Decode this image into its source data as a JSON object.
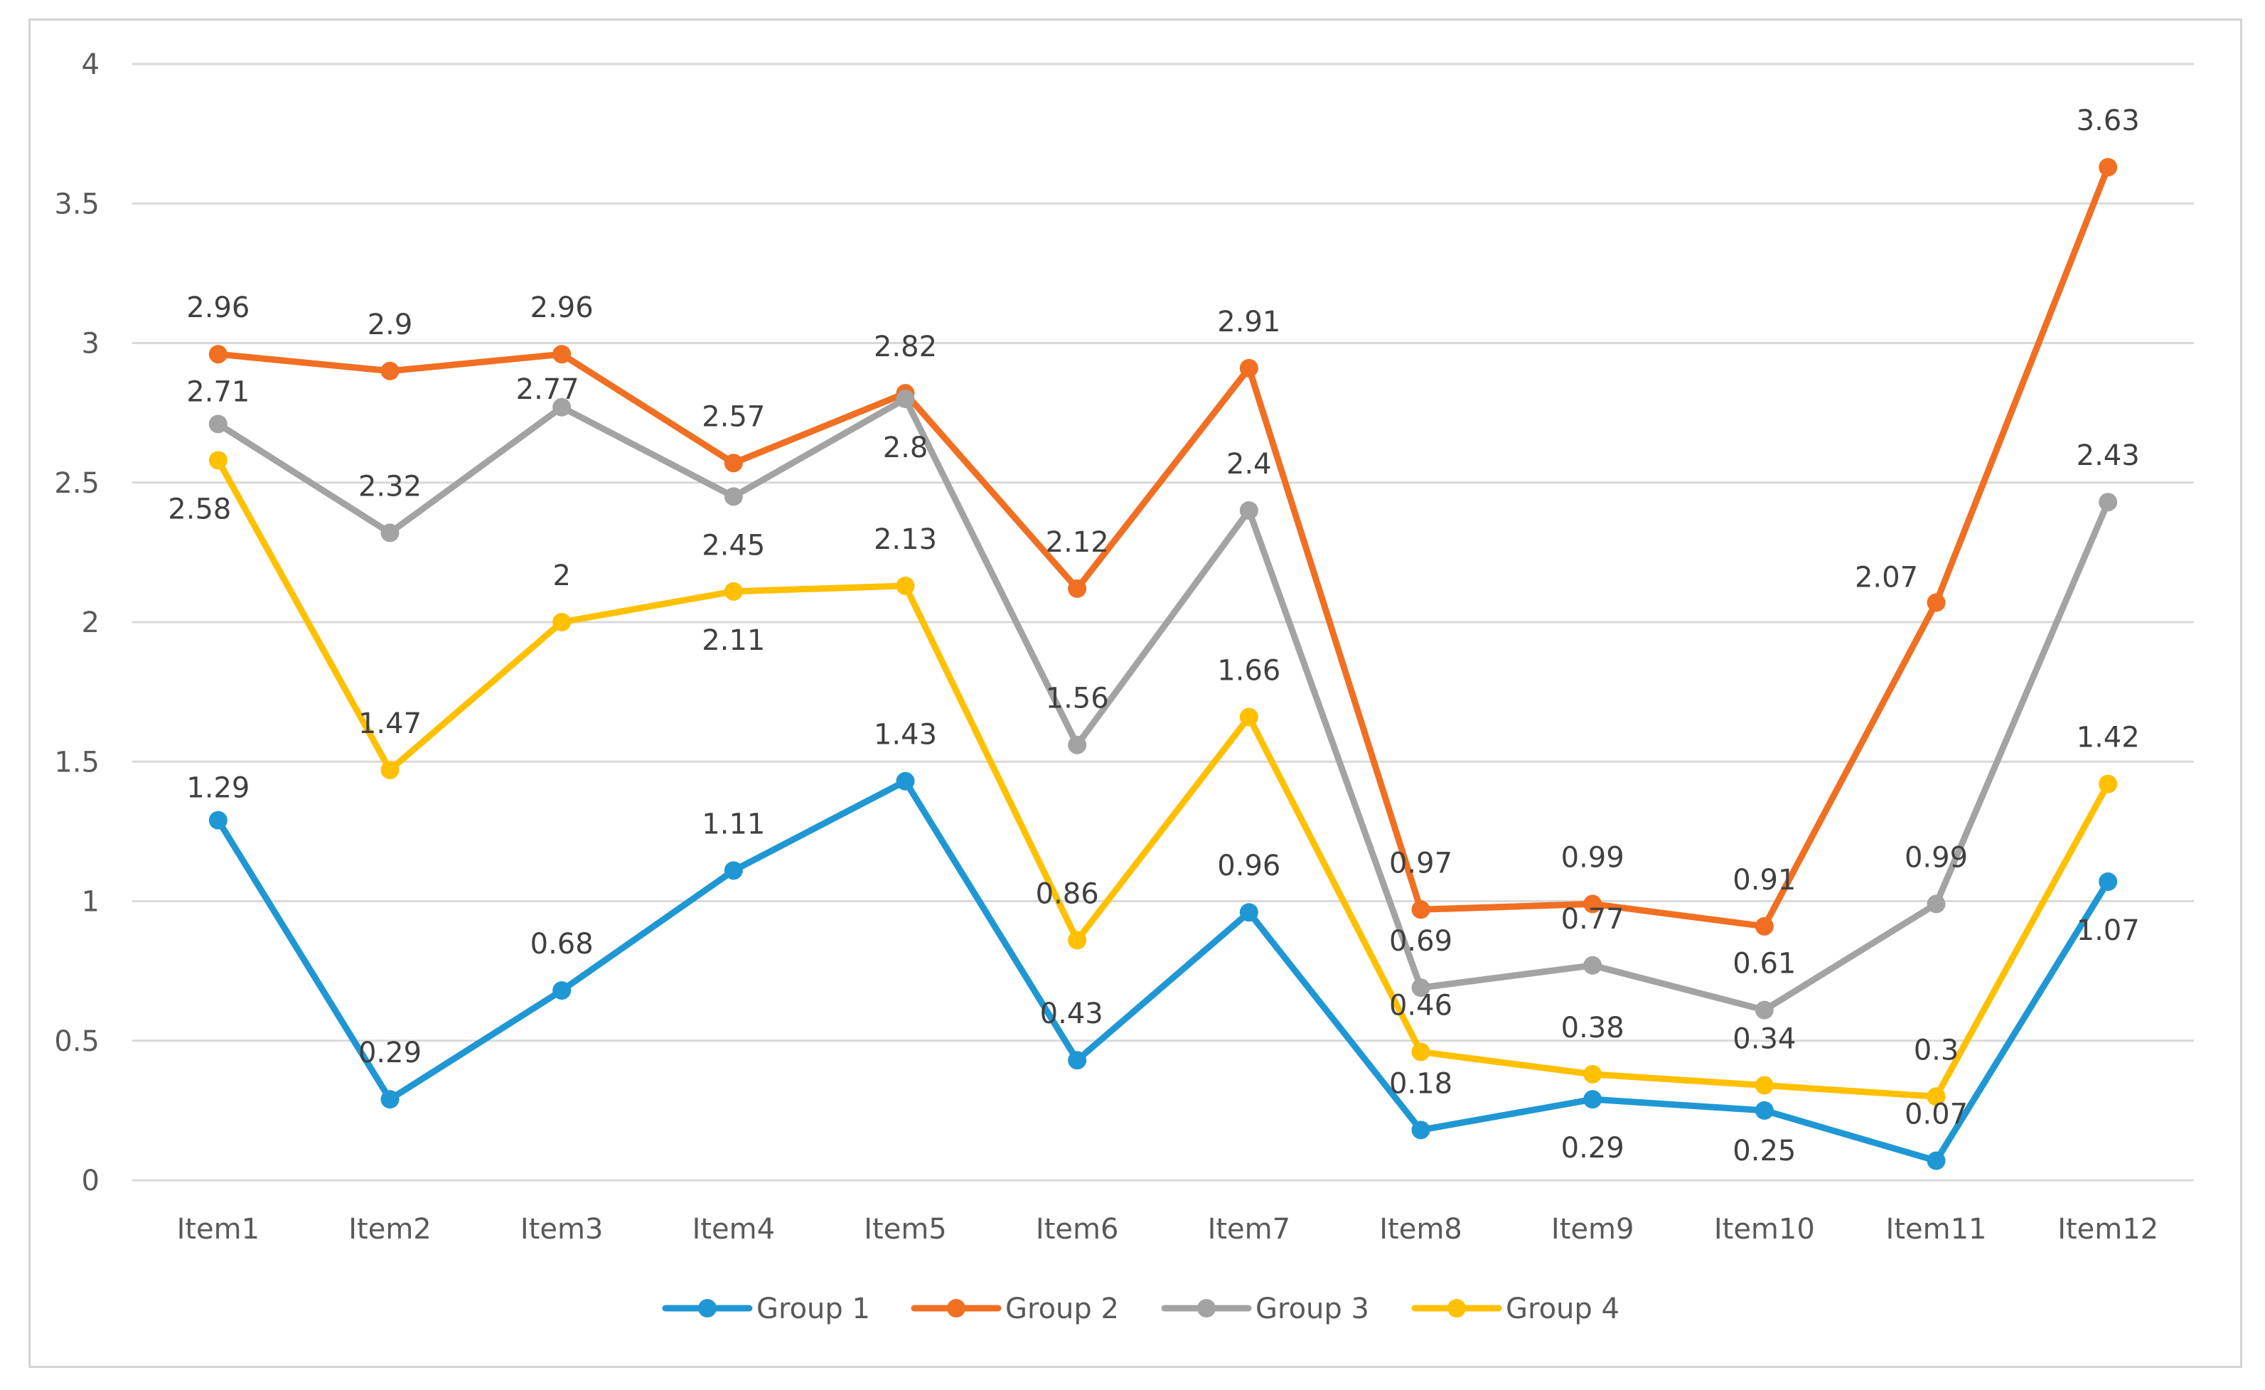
{
  "chart_data": {
    "type": "line",
    "title": "",
    "xlabel": "",
    "ylabel": "",
    "ylim": [
      0,
      4
    ],
    "yticks": [
      "0",
      "0.5",
      "1",
      "1.5",
      "2",
      "2.5",
      "3",
      "3.5",
      "4"
    ],
    "grid": true,
    "legend_position": "bottom",
    "categories": [
      "Item1",
      "Item2",
      "Item3",
      "Item4",
      "Item5",
      "Item6",
      "Item7",
      "Item8",
      "Item9",
      "Item10",
      "Item11",
      "Item12"
    ],
    "series": [
      {
        "name": "Group 1",
        "color": "#1f97d4",
        "values": [
          1.29,
          0.29,
          0.68,
          1.11,
          1.43,
          0.43,
          0.96,
          0.18,
          0.29,
          0.25,
          0.07,
          1.07
        ],
        "labels": [
          "1.29",
          "0.29",
          "0.68",
          "1.11",
          "1.43",
          "0.43",
          "0.96",
          "0.18",
          "0.29",
          "0.25",
          "0.07",
          "1.07"
        ]
      },
      {
        "name": "Group 2",
        "color": "#f06f22",
        "values": [
          2.96,
          2.9,
          2.96,
          2.57,
          2.82,
          2.12,
          2.91,
          0.97,
          0.99,
          0.91,
          2.07,
          3.63
        ],
        "labels": [
          "2.96",
          "2.9",
          "2.96",
          "2.57",
          "2.82",
          "2.12",
          "2.91",
          "0.97",
          "0.99",
          "0.91",
          "2.07",
          "3.63"
        ]
      },
      {
        "name": "Group 3",
        "color": "#a3a3a3",
        "values": [
          2.71,
          2.32,
          2.77,
          2.45,
          2.8,
          1.56,
          2.4,
          0.69,
          0.77,
          0.61,
          0.99,
          2.43
        ],
        "labels": [
          "2.71",
          "2.32",
          "2.77",
          "2.45",
          "2.8",
          "1.56",
          "2.4",
          "0.69",
          "0.77",
          "0.61",
          "0.99",
          "2.43"
        ]
      },
      {
        "name": "Group 4",
        "color": "#ffc000",
        "values": [
          2.58,
          1.47,
          2.0,
          2.11,
          2.13,
          0.86,
          1.66,
          0.46,
          0.38,
          0.34,
          0.3,
          1.42
        ],
        "labels": [
          "2.58",
          "1.47",
          "2",
          "2.11",
          "2.13",
          "0.86",
          "1.66",
          "0.46",
          "0.38",
          "0.34",
          "0.3",
          "1.42"
        ]
      }
    ]
  }
}
